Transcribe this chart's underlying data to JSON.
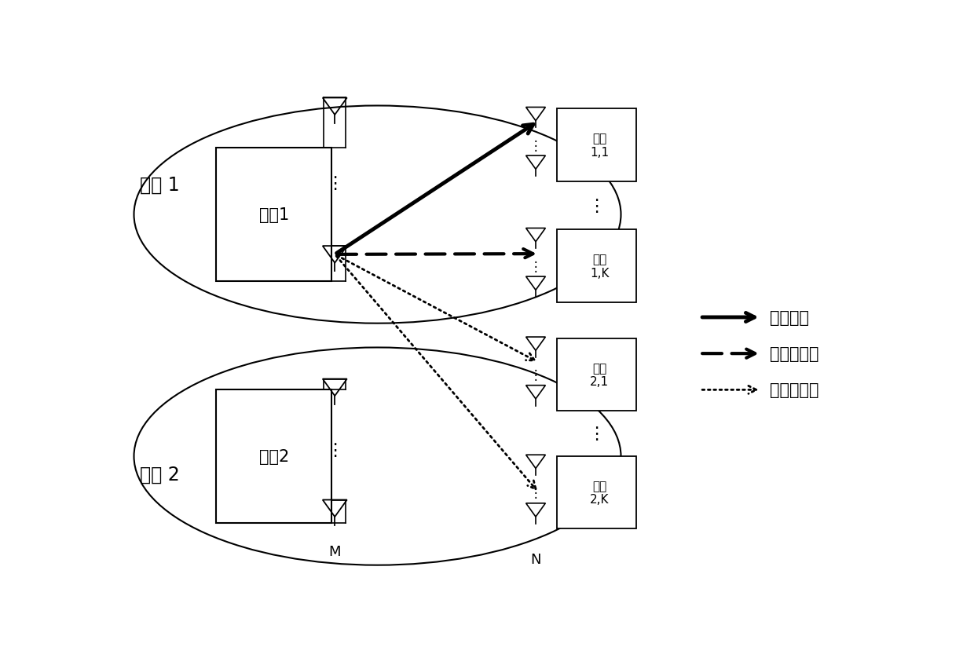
{
  "bg_color": "#ffffff",
  "fig_w": 12.4,
  "fig_h": 8.53,
  "zone1_label": "小区 1",
  "zone2_label": "小区 2",
  "bs1_label": "基站1",
  "bs2_label": "基站2",
  "term11_label": "终端\n1,1",
  "term1K_label": "终端\n1,K",
  "term21_label": "终端\n2,1",
  "term2K_label": "终端\n2,K",
  "legend_solid_label": "期望信号",
  "legend_dash_label": "小区内干扰",
  "legend_dot_label": "小区间干扰",
  "M_label": "M",
  "N_label": "N"
}
